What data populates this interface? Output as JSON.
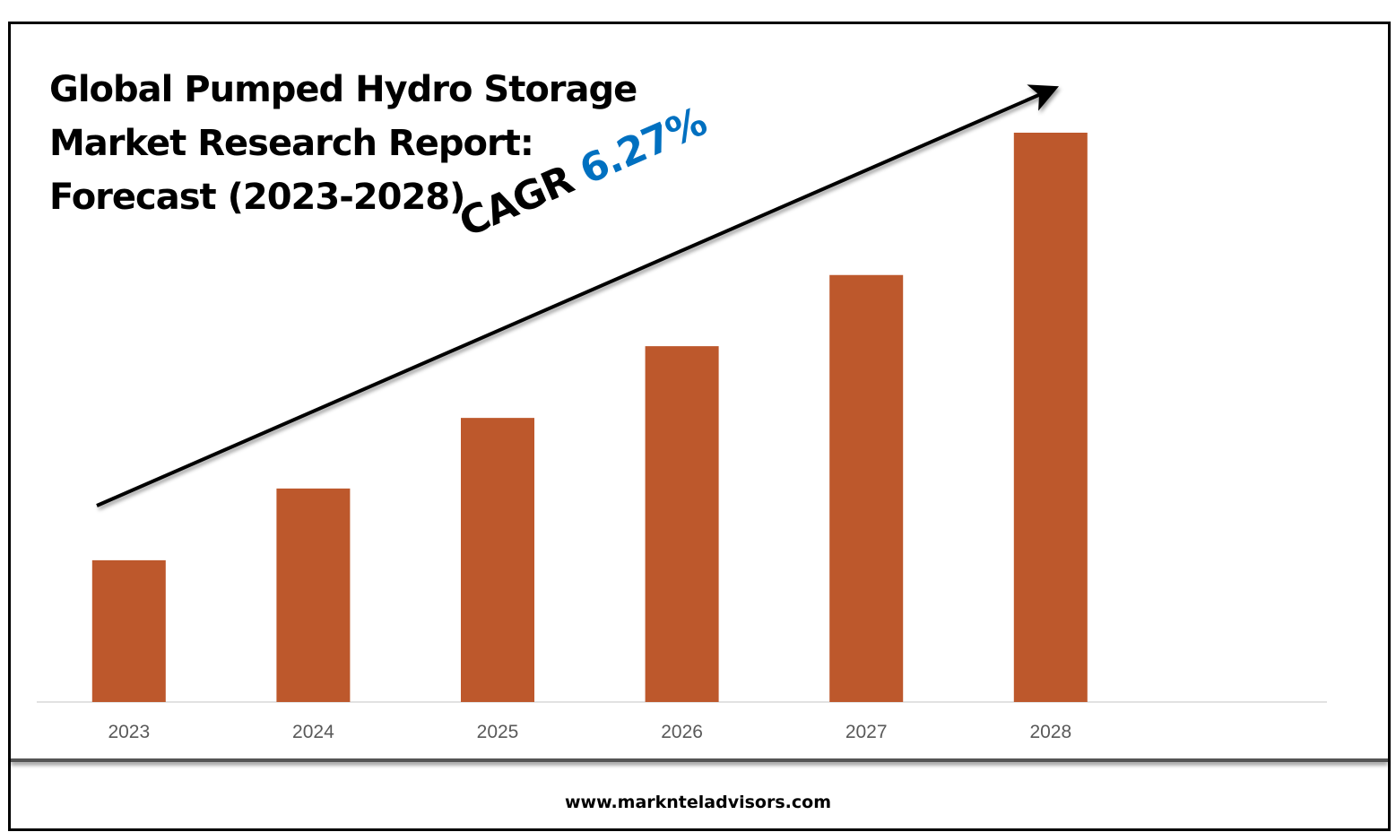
{
  "chart_data": {
    "type": "bar",
    "title": "Global Pumped Hydro Storage Market Research Report: Forecast (2023-2028)",
    "title_lines": [
      "Global Pumped Hydro Storage",
      "Market Research Report:",
      "Forecast (2023-2028)"
    ],
    "categories": [
      "2023",
      "2024",
      "2025",
      "2026",
      "2027",
      "2028"
    ],
    "values": [
      24.9,
      37.5,
      49.9,
      62.5,
      75.0,
      100
    ],
    "value_note_hidden": false,
    "xlabel": "",
    "ylabel": "",
    "ylim": [
      0,
      100
    ],
    "grid": false,
    "legend": "none",
    "bar_color": "#bd582c",
    "annotation": {
      "label": "CAGR",
      "value": "6.27%",
      "label_color": "#000000",
      "value_color": "#0070c0",
      "arrow": "upward trend arrow"
    }
  },
  "footer": {
    "website": "www.marknteladvisors.com"
  }
}
